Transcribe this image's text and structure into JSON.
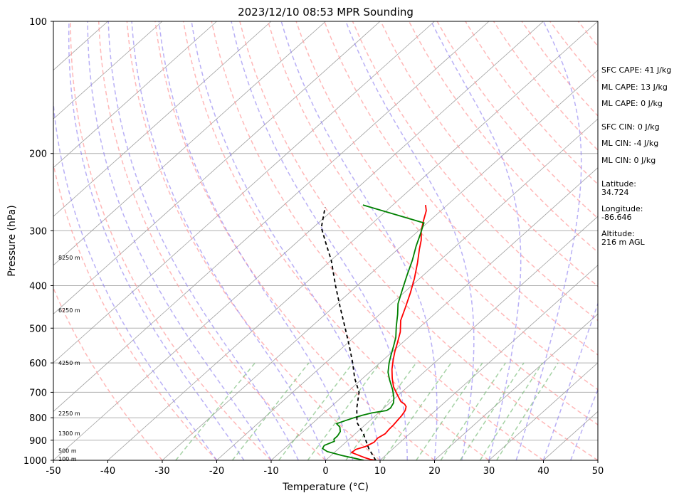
{
  "chart_data": {
    "type": "line",
    "title": "2023/12/10 08:53 MPR Sounding",
    "xlabel": "Temperature (°C)",
    "ylabel": "Pressure (hPa)",
    "xlim": [
      -50,
      50
    ],
    "ylim": [
      1000,
      100
    ],
    "y_scale": "log",
    "x_ticks": [
      "-50",
      "-40",
      "-30",
      "-20",
      "-10",
      "0",
      "10",
      "20",
      "30",
      "40",
      "50"
    ],
    "y_ticks": [
      "100",
      "200",
      "300",
      "400",
      "500",
      "600",
      "700",
      "800",
      "900",
      "1000"
    ],
    "grid": true,
    "height_labels": [
      {
        "text": "8250 m",
        "pressure": 345
      },
      {
        "text": "6250 m",
        "pressure": 455
      },
      {
        "text": "4250 m",
        "pressure": 600
      },
      {
        "text": "2250 m",
        "pressure": 782
      },
      {
        "text": "1300 m",
        "pressure": 868
      },
      {
        "text": "500 m",
        "pressure": 950
      },
      {
        "text": "100 m",
        "pressure": 992
      }
    ],
    "series": [
      {
        "color": "#ff0000",
        "line": "temperature",
        "points": [
          [
            9.2,
            1000
          ],
          [
            8,
            995
          ],
          [
            6.5,
            985
          ],
          [
            4.5,
            970
          ],
          [
            3.2,
            960
          ],
          [
            3.3,
            945
          ],
          [
            4.5,
            930
          ],
          [
            5.2,
            910
          ],
          [
            5.0,
            890
          ],
          [
            5.5,
            870
          ],
          [
            5.3,
            850
          ],
          [
            5.2,
            830
          ],
          [
            5.0,
            810
          ],
          [
            4.8,
            790
          ],
          [
            4.4,
            770
          ],
          [
            3.8,
            755
          ],
          [
            3.0,
            745
          ],
          [
            1.8,
            735
          ],
          [
            -0.2,
            710
          ],
          [
            -2.6,
            680
          ],
          [
            -4.6,
            650
          ],
          [
            -6.5,
            620
          ],
          [
            -8.2,
            590
          ],
          [
            -9.6,
            565
          ],
          [
            -10.9,
            540
          ],
          [
            -12.6,
            510
          ],
          [
            -14.9,
            480
          ],
          [
            -16.6,
            450
          ],
          [
            -18.8,
            415
          ],
          [
            -21.0,
            385
          ],
          [
            -23.6,
            355
          ],
          [
            -26.1,
            330
          ],
          [
            -27.6,
            315
          ],
          [
            -29.5,
            300
          ],
          [
            -31.1,
            285
          ],
          [
            -32.7,
            270
          ],
          [
            -34.0,
            262
          ]
        ]
      },
      {
        "color": "#008000",
        "line": "dewpoint",
        "points": [
          [
            7,
            1000
          ],
          [
            5,
            990
          ],
          [
            2,
            975
          ],
          [
            -1.5,
            955
          ],
          [
            -3,
            940
          ],
          [
            -3.3,
            925
          ],
          [
            -2.3,
            905
          ],
          [
            -2.8,
            895
          ],
          [
            -2.8,
            880
          ],
          [
            -3.2,
            860
          ],
          [
            -4.2,
            840
          ],
          [
            -5.5,
            825
          ],
          [
            -4.5,
            812
          ],
          [
            -3.5,
            800
          ],
          [
            -2.5,
            790
          ],
          [
            -1.2,
            780
          ],
          [
            1,
            770
          ],
          [
            1.2,
            760
          ],
          [
            0.7,
            740
          ],
          [
            -0.3,
            720
          ],
          [
            -2.2,
            690
          ],
          [
            -4.8,
            655
          ],
          [
            -6.6,
            630
          ],
          [
            -8.3,
            600
          ],
          [
            -9.6,
            575
          ],
          [
            -10.9,
            550
          ],
          [
            -12.3,
            525
          ],
          [
            -14.5,
            495
          ],
          [
            -16.7,
            465
          ],
          [
            -18.8,
            440
          ],
          [
            -20.8,
            410
          ],
          [
            -22.9,
            380
          ],
          [
            -25.1,
            350
          ],
          [
            -27.3,
            325
          ],
          [
            -29.0,
            305
          ],
          [
            -30.6,
            288
          ],
          [
            -45.5,
            262
          ]
        ]
      },
      {
        "color": "#000000",
        "dashed": true,
        "line": "parcel",
        "points": [
          [
            9.2,
            1000
          ],
          [
            5.5,
            940
          ],
          [
            1.5,
            870
          ],
          [
            -2,
            820
          ],
          [
            -5,
            760
          ],
          [
            -7.8,
            700
          ],
          [
            -11.5,
            650
          ],
          [
            -15,
            600
          ],
          [
            -19,
            550
          ],
          [
            -23.5,
            500
          ],
          [
            -28.5,
            450
          ],
          [
            -34,
            400
          ],
          [
            -40,
            350
          ],
          [
            -44.5,
            320
          ],
          [
            -48.5,
            295
          ],
          [
            -52,
            265
          ]
        ]
      }
    ]
  },
  "side_info": [
    {
      "text": "SFC CAPE: 41 J/kg"
    },
    {
      "text": "ML CAPE: 13 J/kg"
    },
    {
      "text": "ML CAPE: 0 J/kg"
    },
    {
      "text": "SFC CIN: 0 J/kg"
    },
    {
      "text": "ML CIN: -4 J/kg"
    },
    {
      "text": "ML CIN: 0 J/kg"
    },
    {
      "text": "Latitude:\n34.724"
    },
    {
      "text": "Longitude:\n-86.646"
    },
    {
      "text": "Altitude:\n216 m AGL"
    }
  ],
  "colors": {
    "dry_adiabat": "#ff9a9a",
    "moist_adiabat": "#8a7cf0",
    "mixing_ratio": "#7fbf7f",
    "isotherm": "#a0a0a0"
  }
}
